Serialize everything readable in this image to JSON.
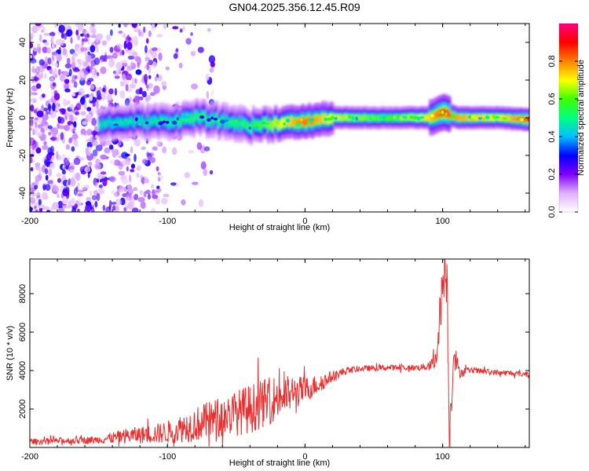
{
  "title": "GN04.2025.356.12.45.R09",
  "chart_data": [
    {
      "type": "heatmap",
      "name": "spectrogram",
      "xlabel": "Height of straight line (km)",
      "ylabel": "Frequency (Hz)",
      "xlim": [
        -200,
        163
      ],
      "ylim": [
        -50,
        50
      ],
      "xticks": [
        -200,
        -100,
        0,
        100
      ],
      "xtick_labels": [
        "-200",
        "-100",
        "0",
        "100"
      ],
      "yticks": [
        -40,
        -20,
        0,
        20,
        40
      ],
      "ytick_labels": [
        "-40",
        "-20",
        "0",
        "20",
        "40"
      ],
      "colorbar": {
        "label": "Normalized spectral amplitude",
        "range": [
          0,
          1
        ],
        "ticks": [
          0.0,
          0.2,
          0.4,
          0.6,
          0.8
        ],
        "tick_labels": [
          "0.0",
          "0.2",
          "0.4",
          "0.6",
          "0.8"
        ],
        "colors": [
          "#ffffff",
          "#e0b0ff",
          "#8000ff",
          "#0000ff",
          "#00c0ff",
          "#00ff80",
          "#40ff00",
          "#ffff00",
          "#ff8000",
          "#ff0000",
          "#ff0080"
        ]
      },
      "ridge": {
        "description_points_x": [
          -150,
          -120,
          -100,
          -80,
          -60,
          -40,
          -20,
          0,
          20,
          60,
          90,
          100,
          110,
          140,
          163
        ],
        "center_freq": [
          -3,
          -2,
          -2,
          0,
          -2,
          -4,
          -3,
          -2,
          0,
          0,
          0,
          3,
          0,
          0,
          -1
        ],
        "peak_amplitude": [
          0.45,
          0.45,
          0.5,
          0.55,
          0.5,
          0.55,
          0.7,
          0.85,
          0.7,
          0.6,
          0.75,
          0.9,
          0.8,
          0.7,
          0.9
        ]
      },
      "noise_region_x": [
        -200,
        -105
      ]
    },
    {
      "type": "line",
      "name": "snr",
      "xlabel": "Height of straight line (km)",
      "ylabel": "SNR (10 * v/v)",
      "xlim": [
        -200,
        163
      ],
      "ylim": [
        0,
        9800
      ],
      "xticks": [
        -200,
        -100,
        0,
        100
      ],
      "xtick_labels": [
        "-200",
        "-100",
        "0",
        "100"
      ],
      "yticks": [
        2000,
        4000,
        6000,
        8000
      ],
      "ytick_labels": [
        "2000",
        "4000",
        "6000",
        "8000"
      ],
      "color": "#e83030",
      "series": [
        {
          "name": "SNR",
          "x": [
            -200,
            -150,
            -130,
            -110,
            -100,
            -80,
            -60,
            -40,
            -20,
            0,
            10,
            20,
            30,
            40,
            60,
            80,
            90,
            95,
            100,
            103,
            105,
            108,
            112,
            120,
            140,
            163
          ],
          "y": [
            300,
            400,
            600,
            700,
            800,
            1200,
            1600,
            2000,
            2600,
            3000,
            3300,
            3700,
            4000,
            4100,
            4150,
            4150,
            4200,
            4500,
            8500,
            9200,
            600,
            5000,
            3900,
            4000,
            3900,
            3800
          ],
          "amplitude": [
            150,
            200,
            400,
            500,
            600,
            900,
            1100,
            1300,
            1200,
            700,
            500,
            300,
            200,
            150,
            150,
            150,
            200,
            600,
            1500,
            1800,
            1500,
            900,
            300,
            150,
            150,
            150
          ]
        }
      ]
    }
  ]
}
